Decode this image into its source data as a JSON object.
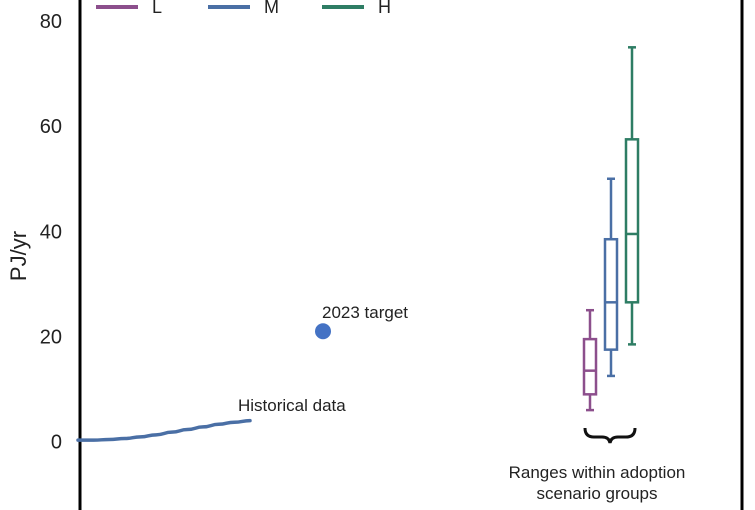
{
  "chart_data": {
    "type": "line",
    "ylabel": "PJ/yr",
    "ylim": [
      -13,
      84
    ],
    "yticks": [
      0,
      20,
      40,
      60,
      80
    ],
    "grid": false,
    "legend": {
      "placement": "top",
      "entries": [
        {
          "label": "L",
          "color": "#8c4f8c"
        },
        {
          "label": "M",
          "color": "#4a6fa5"
        },
        {
          "label": "H",
          "color": "#2e7d64"
        }
      ]
    },
    "historical": {
      "label": "Historical data",
      "color": "#4a6fa5",
      "values": [
        0.3,
        0.3,
        0.4,
        0.6,
        0.9,
        1.3,
        1.8,
        2.3,
        2.8,
        3.3,
        3.7,
        4.0
      ]
    },
    "target": {
      "label": "2023 target",
      "value": 21,
      "color": "#4472c4"
    },
    "boxes": [
      {
        "group": "L",
        "color": "#8c4f8c",
        "min": 6,
        "q1": 9,
        "median": 13.5,
        "q3": 19.5,
        "max": 25
      },
      {
        "group": "M",
        "color": "#4a6fa5",
        "min": 12.5,
        "q1": 17.5,
        "median": 26.5,
        "q3": 38.5,
        "max": 50
      },
      {
        "group": "H",
        "color": "#2e7d64",
        "min": 18.5,
        "q1": 26.5,
        "median": 39.5,
        "q3": 57.5,
        "max": 75
      }
    ],
    "brace_label_lines": [
      "Ranges within adoption",
      "scenario groups"
    ]
  }
}
